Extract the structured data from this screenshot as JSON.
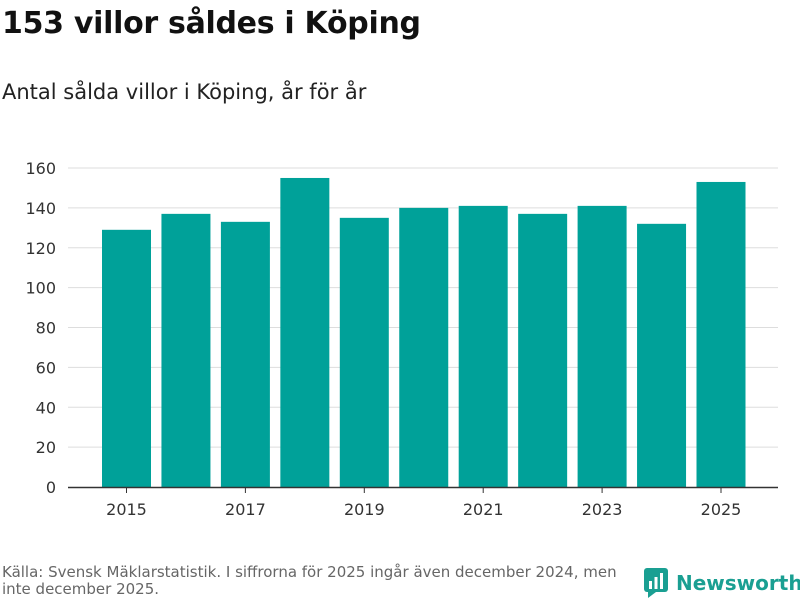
{
  "header": {
    "title": "153 villor såldes i Köping",
    "subtitle": "Antal sålda villor i Köping, år för år"
  },
  "footer": {
    "source": "Källa: Svensk Mäklarstatistik. I siffrorna för 2025 ingår även december 2024, men inte december 2025.",
    "brand_name": "Newsworthy"
  },
  "colors": {
    "bar": "#00a199",
    "grid": "#dddddd",
    "axis": "#333333",
    "brand": "#1a9f92"
  },
  "icons": {
    "brand_logo": "newsworthy-logo-icon"
  },
  "chart_data": {
    "type": "bar",
    "title": "153 villor såldes i Köping",
    "subtitle": "Antal sålda villor i Köping, år för år",
    "xlabel": "",
    "ylabel": "",
    "categories": [
      "2015",
      "2016",
      "2017",
      "2018",
      "2019",
      "2020",
      "2021",
      "2022",
      "2023",
      "2024",
      "2025"
    ],
    "values": [
      129,
      137,
      133,
      155,
      135,
      140,
      141,
      137,
      141,
      132,
      153
    ],
    "x_tick_labels": [
      "2015",
      "2017",
      "2019",
      "2021",
      "2023",
      "2025"
    ],
    "y_ticks": [
      0,
      20,
      40,
      60,
      80,
      100,
      120,
      140,
      160
    ],
    "ylim": [
      0,
      160
    ],
    "grid": true,
    "legend": "none"
  }
}
